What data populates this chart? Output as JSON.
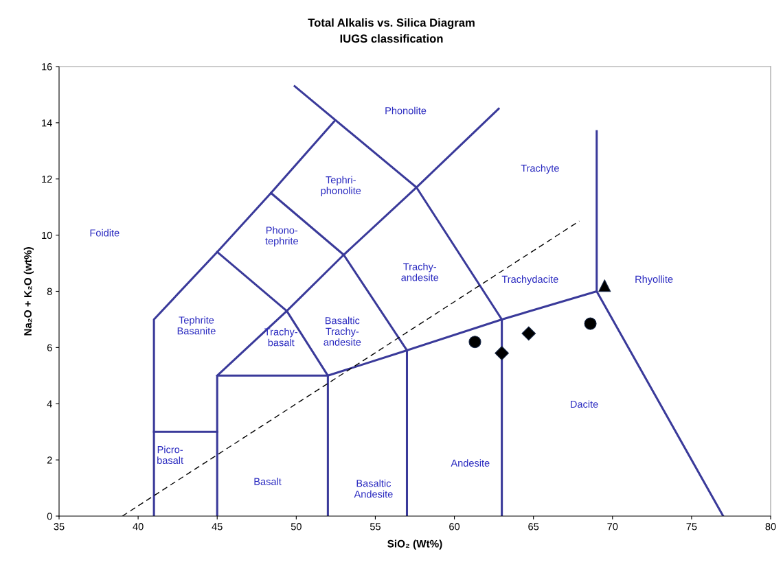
{
  "chart_data": {
    "type": "line",
    "title": "Total Alkalis vs. Silica Diagram",
    "subtitle": "IUGS classification",
    "xlabel": "SiO₂ (Wt%)",
    "ylabel": "Na₂O + K₂O (wt%)",
    "xlim": [
      35,
      80
    ],
    "xticks": [
      35,
      40,
      45,
      50,
      55,
      60,
      65,
      70,
      75,
      80
    ],
    "ylim": [
      0,
      16
    ],
    "yticks": [
      0,
      2,
      4,
      6,
      8,
      10,
      12,
      14,
      16
    ],
    "grid": false,
    "legend": false,
    "marker": "none",
    "line_style": "solid",
    "series": [
      {
        "color": "#3a3a9a",
        "x": [
          41,
          41,
          45,
          48.4,
          52.4
        ],
        "values": [
          0,
          7,
          9.4,
          11.5,
          14.05
        ]
      },
      {
        "color": "#3a3a9a",
        "x": [
          49.9,
          57.6,
          63
        ],
        "values": [
          15.3,
          11.7,
          7
        ]
      },
      {
        "color": "#3a3a9a",
        "x": [
          45,
          49.4,
          53,
          57.6,
          62.8
        ],
        "values": [
          5,
          7.3,
          9.3,
          11.7,
          14.5
        ]
      },
      {
        "color": "#3a3a9a",
        "x": [
          45,
          49.4,
          52
        ],
        "values": [
          9.4,
          7.3,
          5
        ]
      },
      {
        "color": "#3a3a9a",
        "x": [
          48.4,
          53,
          57
        ],
        "values": [
          11.5,
          9.3,
          5.9
        ]
      },
      {
        "color": "#3a3a9a",
        "x": [
          45,
          45,
          52,
          57,
          63,
          69,
          77
        ],
        "values": [
          0,
          5,
          5,
          5.9,
          7,
          8,
          0
        ]
      },
      {
        "color": "#3a3a9a",
        "x": [
          69,
          69
        ],
        "values": [
          8,
          13.7
        ]
      },
      {
        "color": "#3a3a9a",
        "x": [
          63,
          63
        ],
        "values": [
          7,
          0
        ]
      },
      {
        "color": "#3a3a9a",
        "x": [
          57,
          57
        ],
        "values": [
          5.9,
          0
        ]
      },
      {
        "color": "#3a3a9a",
        "x": [
          52,
          52
        ],
        "values": [
          5,
          0
        ]
      },
      {
        "color": "#3a3a9a",
        "x": [
          41,
          45
        ],
        "values": [
          3,
          3
        ]
      },
      {
        "color": "#000000",
        "line_style": "dashed",
        "x": [
          39,
          67.9
        ],
        "values": [
          0,
          10.5
        ]
      },
      {
        "type": "scatter",
        "color": "#000000",
        "marker": "circle",
        "x": [
          61.3
        ],
        "values": [
          6.2
        ]
      },
      {
        "type": "scatter",
        "color": "#000000",
        "marker": "diamond",
        "x": [
          63
        ],
        "values": [
          5.8
        ]
      },
      {
        "type": "scatter",
        "color": "#000000",
        "marker": "diamond",
        "x": [
          64.7
        ],
        "values": [
          6.5
        ]
      },
      {
        "type": "scatter",
        "color": "#000000",
        "marker": "circle",
        "x": [
          68.6
        ],
        "values": [
          6.85
        ]
      },
      {
        "type": "scatter",
        "color": "#000000",
        "marker": "triangle",
        "x": [
          69.5
        ],
        "values": [
          8.2
        ]
      }
    ],
    "annotations": [
      "Phonolite",
      "Tephri-\nphonolite",
      "Trachyte",
      "Foidite",
      "Phono-\ntephrite",
      "Trachy-\nandesite",
      "Trachydacite",
      "Rhyollite",
      "Tephrite\nBasanite",
      "Basaltic\nTrachy-\nandesite",
      "Trachy-\nbasalt",
      "Dacite",
      "Andesite",
      "Picro-\nbasalt",
      "Basalt",
      "Basaltic\nAndesite"
    ]
  }
}
